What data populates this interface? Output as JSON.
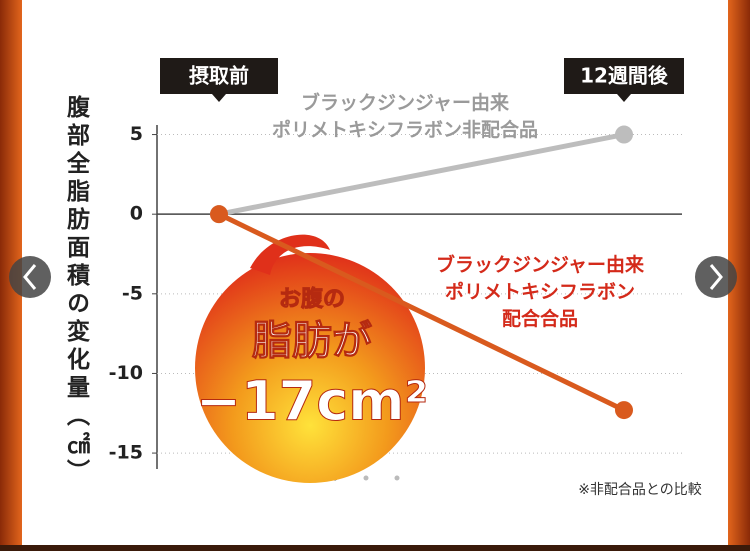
{
  "chart_data": {
    "type": "line",
    "y_label": "腹部全脂肪面積の変化量（㎠）",
    "categories": [
      "摂取前",
      "12週間後"
    ],
    "series": [
      {
        "name": "ブラックジンジャー由来\nポリメトキシフラボン非配合品",
        "color": "#bdbdbd",
        "label_color": "#9a9a9a",
        "values": [
          0,
          5
        ]
      },
      {
        "name": "ブラックジンジャー由来\nポリメトキシフラボン\n配合合品",
        "color": "#d95a1e",
        "label_color": "#d42a1a",
        "values": [
          0,
          -12.3
        ]
      }
    ],
    "ylim": [
      -16,
      5.6
    ],
    "yticks": [
      5,
      0,
      -5,
      -10,
      -15
    ],
    "grid": true,
    "callout": [
      "お腹の",
      "脂肪が",
      "−17cm²"
    ],
    "note": "※非配合品との比較"
  }
}
